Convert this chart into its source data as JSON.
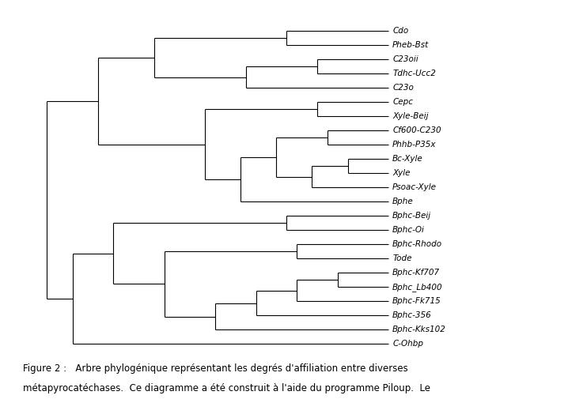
{
  "bg_color": "#ffffff",
  "line_color": "#000000",
  "fontsize": 7.5,
  "caption_fontsize": 8.5,
  "leaves": [
    "Cdo",
    "Pheb-Bst",
    "C23oii",
    "Tdhc-Ucc2",
    "C23o",
    "Cepc",
    "Xyle-Beij",
    "Cf600-C230",
    "Phhb-P35x",
    "Bc-Xyle",
    "Xyle",
    "Psoac-Xyle",
    "Bphe",
    "Bphc-Beij",
    "Bphc-Oi",
    "Bphc-Rhodo",
    "Tode",
    "Bphc-Kf707",
    "Bphc_Lb400",
    "Bphc-Fk715",
    "Bphc-356",
    "Bphc-Kks102",
    "C-Ohbp"
  ],
  "caption_line1": "Figure 2 :   Arbre phylogénique représentant les degrés d'affiliation entre diverses",
  "caption_line2": "métapyrocatéchases.  Ce diagramme a été construit à l'aide du programme Piloup.  Le"
}
